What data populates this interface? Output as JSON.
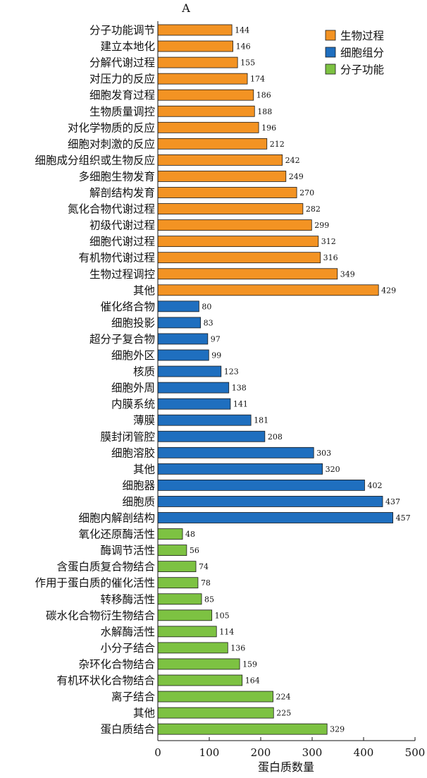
{
  "chart_data": {
    "type": "bar",
    "orientation": "horizontal",
    "panel_label": "A",
    "title": "",
    "xlabel": "蛋白质数量",
    "ylabel": "",
    "xlim": [
      0,
      500
    ],
    "xticks": [
      0,
      100,
      200,
      300,
      400,
      500
    ],
    "grid": false,
    "legend_position": "top-right",
    "colors": {
      "生物过程": "#f39323",
      "细胞组分": "#1f6fbf",
      "分子功能": "#7dc242"
    },
    "legend": [
      "生物过程",
      "细胞组分",
      "分子功能"
    ],
    "bars": [
      {
        "label": "分子功能调节",
        "value": 144,
        "group": "生物过程"
      },
      {
        "label": "建立本地化",
        "value": 146,
        "group": "生物过程"
      },
      {
        "label": "分解代谢过程",
        "value": 155,
        "group": "生物过程"
      },
      {
        "label": "对压力的反应",
        "value": 174,
        "group": "生物过程"
      },
      {
        "label": "细胞发育过程",
        "value": 186,
        "group": "生物过程"
      },
      {
        "label": "生物质量调控",
        "value": 188,
        "group": "生物过程"
      },
      {
        "label": "对化学物质的反应",
        "value": 196,
        "group": "生物过程"
      },
      {
        "label": "细胞对刺激的反应",
        "value": 212,
        "group": "生物过程"
      },
      {
        "label": "细胞成分组织或生物反应",
        "value": 242,
        "group": "生物过程"
      },
      {
        "label": "多细胞生物发育",
        "value": 249,
        "group": "生物过程"
      },
      {
        "label": "解剖结构发育",
        "value": 270,
        "group": "生物过程"
      },
      {
        "label": "氮化合物代谢过程",
        "value": 282,
        "group": "生物过程"
      },
      {
        "label": "初级代谢过程",
        "value": 299,
        "group": "生物过程"
      },
      {
        "label": "细胞代谢过程",
        "value": 312,
        "group": "生物过程"
      },
      {
        "label": "有机物代谢过程",
        "value": 316,
        "group": "生物过程"
      },
      {
        "label": "生物过程调控",
        "value": 349,
        "group": "生物过程"
      },
      {
        "label": "其他",
        "value": 429,
        "group": "生物过程"
      },
      {
        "label": "催化络合物",
        "value": 80,
        "group": "细胞组分"
      },
      {
        "label": "细胞投影",
        "value": 83,
        "group": "细胞组分"
      },
      {
        "label": "超分子复合物",
        "value": 97,
        "group": "细胞组分"
      },
      {
        "label": "细胞外区",
        "value": 99,
        "group": "细胞组分"
      },
      {
        "label": "核质",
        "value": 123,
        "group": "细胞组分"
      },
      {
        "label": "细胞外周",
        "value": 138,
        "group": "细胞组分"
      },
      {
        "label": "内膜系统",
        "value": 141,
        "group": "细胞组分"
      },
      {
        "label": "薄膜",
        "value": 181,
        "group": "细胞组分"
      },
      {
        "label": "膜封闭管腔",
        "value": 208,
        "group": "细胞组分"
      },
      {
        "label": "细胞溶胶",
        "value": 303,
        "group": "细胞组分"
      },
      {
        "label": "其他",
        "value": 320,
        "group": "细胞组分"
      },
      {
        "label": "细胞器",
        "value": 402,
        "group": "细胞组分"
      },
      {
        "label": "细胞质",
        "value": 437,
        "group": "细胞组分"
      },
      {
        "label": "细胞内解剖结构",
        "value": 457,
        "group": "细胞组分"
      },
      {
        "label": "氧化还原酶活性",
        "value": 48,
        "group": "分子功能"
      },
      {
        "label": "酶调节活性",
        "value": 56,
        "group": "分子功能"
      },
      {
        "label": "含蛋白质复合物结合",
        "value": 74,
        "group": "分子功能"
      },
      {
        "label": "作用于蛋白质的催化活性",
        "value": 78,
        "group": "分子功能"
      },
      {
        "label": "转移酶活性",
        "value": 85,
        "group": "分子功能"
      },
      {
        "label": "碳水化合物衍生物结合",
        "value": 105,
        "group": "分子功能"
      },
      {
        "label": "水解酶活性",
        "value": 114,
        "group": "分子功能"
      },
      {
        "label": "小分子结合",
        "value": 136,
        "group": "分子功能"
      },
      {
        "label": "杂环化合物结合",
        "value": 159,
        "group": "分子功能"
      },
      {
        "label": "有机环状化合物结合",
        "value": 164,
        "group": "分子功能"
      },
      {
        "label": "离子结合",
        "value": 224,
        "group": "分子功能"
      },
      {
        "label": "其他",
        "value": 225,
        "group": "分子功能"
      },
      {
        "label": "蛋白质结合",
        "value": 329,
        "group": "分子功能"
      }
    ]
  }
}
